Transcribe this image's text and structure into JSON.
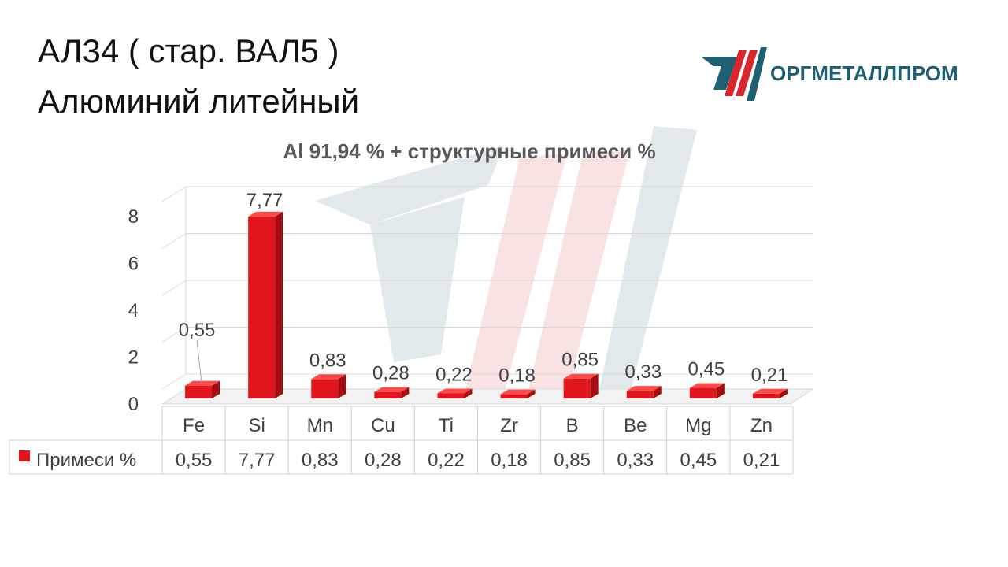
{
  "header": {
    "title_line1": "АЛ34 ( стар. ВАЛ5 )",
    "title_line2": "Алюминий литейный"
  },
  "logo": {
    "text": "ОРГМЕТАЛЛПРОМ"
  },
  "colors": {
    "bar_front": "#e0151d",
    "bar_side": "#a30c10",
    "bar_top": "#ff4a4a",
    "logo_teal": "#1f5f74",
    "logo_red": "#d9262c"
  },
  "chart_data": {
    "type": "bar",
    "title": "Al 91,94 % + структурные примеси %",
    "categories": [
      "Fe",
      "Si",
      "Mn",
      "Cu",
      "Ti",
      "Zr",
      "B",
      "Be",
      "Mg",
      "Zn"
    ],
    "series": [
      {
        "name": "Примеси %",
        "values": [
          0.55,
          7.77,
          0.83,
          0.28,
          0.22,
          0.18,
          0.85,
          0.33,
          0.45,
          0.21
        ],
        "labels": [
          "0,55",
          "7,77",
          "0,83",
          "0,28",
          "0,22",
          "0,18",
          "0,85",
          "0,33",
          "0,45",
          "0,21"
        ]
      }
    ],
    "yticks": [
      "0",
      "2",
      "4",
      "6",
      "8"
    ],
    "ylim": [
      0,
      8
    ],
    "grid": true,
    "legend": "data-table",
    "style": "3d"
  }
}
